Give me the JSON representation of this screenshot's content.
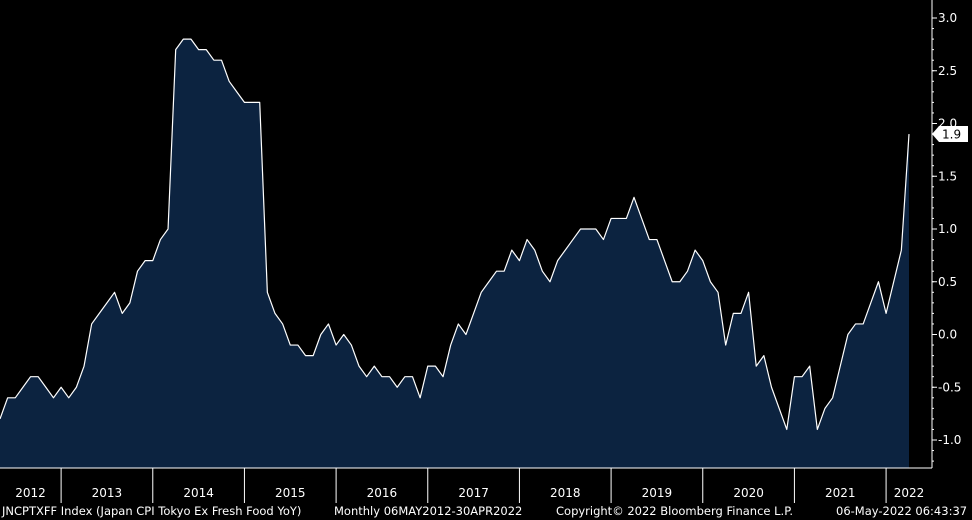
{
  "chart_data": {
    "type": "area",
    "start": "2012-05",
    "frequency": "monthly",
    "series": [
      {
        "name": "JNCPTXFF Index (Japan CPI Tokyo Ex Fresh Food YoY)",
        "values": [
          -0.8,
          -0.6,
          -0.6,
          -0.5,
          -0.4,
          -0.4,
          -0.5,
          -0.6,
          -0.5,
          -0.6,
          -0.5,
          -0.3,
          0.1,
          0.2,
          0.3,
          0.4,
          0.2,
          0.3,
          0.6,
          0.7,
          0.7,
          0.9,
          1.0,
          2.7,
          2.8,
          2.8,
          2.7,
          2.7,
          2.6,
          2.6,
          2.4,
          2.3,
          2.2,
          2.2,
          2.2,
          0.4,
          0.2,
          0.1,
          -0.1,
          -0.1,
          -0.2,
          -0.2,
          0.0,
          0.1,
          -0.1,
          0.0,
          -0.1,
          -0.3,
          -0.4,
          -0.3,
          -0.4,
          -0.4,
          -0.5,
          -0.4,
          -0.4,
          -0.6,
          -0.3,
          -0.3,
          -0.4,
          -0.1,
          0.1,
          0.0,
          0.2,
          0.4,
          0.5,
          0.6,
          0.6,
          0.8,
          0.7,
          0.9,
          0.8,
          0.6,
          0.5,
          0.7,
          0.8,
          0.9,
          1.0,
          1.0,
          1.0,
          0.9,
          1.1,
          1.1,
          1.1,
          1.3,
          1.1,
          0.9,
          0.9,
          0.7,
          0.5,
          0.5,
          0.6,
          0.8,
          0.7,
          0.5,
          0.4,
          -0.1,
          0.2,
          0.2,
          0.4,
          -0.3,
          -0.2,
          -0.5,
          -0.7,
          -0.9,
          -0.4,
          -0.4,
          -0.3,
          -0.9,
          -0.7,
          -0.6,
          -0.3,
          0.0,
          0.1,
          0.1,
          0.3,
          0.5,
          0.2,
          0.5,
          0.8,
          1.9
        ]
      }
    ],
    "x_tick_labels": [
      "2012",
      "2013",
      "2014",
      "2015",
      "2016",
      "2017",
      "2018",
      "2019",
      "2020",
      "2021",
      "2022"
    ],
    "y_ticks": [
      -1.0,
      -0.5,
      0.0,
      0.5,
      1.0,
      1.5,
      2.0,
      2.5,
      3.0
    ],
    "y_tick_labels": [
      "-1.0",
      "-0.5",
      "0.0",
      "0.5",
      "1.0",
      "1.5",
      "2.0",
      "2.5",
      "3.0"
    ],
    "ylim": [
      -1.25,
      3.1
    ],
    "last_value_label": "1.9",
    "grid": false,
    "colors": {
      "background": "#000000",
      "fill": "#0c2340",
      "line": "#ffffff",
      "text": "#ffffff"
    }
  },
  "footer": {
    "security": "JNCPTXFF Index (Japan CPI Tokyo Ex Fresh Food YoY)",
    "period": "Monthly 06MAY2012-30APR2022",
    "copyright": "Copyright© 2022 Bloomberg Finance L.P.",
    "timestamp": "06-May-2022 06:43:37"
  }
}
